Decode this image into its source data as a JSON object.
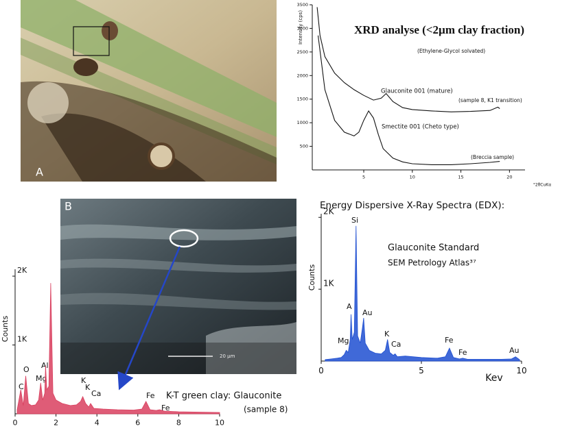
{
  "panels": {
    "a_label": "A",
    "b_label": "B",
    "scale_bar": "20 µm",
    "caption": "K-T green clay: Glauconite",
    "caption_sample": "(sample 8)"
  },
  "chart_data": [
    {
      "type": "line",
      "title": "XRD analyse (<2µm clay fraction)",
      "y_label": "Intensity (cps)",
      "x_label": "°2θCuKα",
      "annotations": [
        "(Ethylene-Glycol solvated)",
        "Glauconite 001 (mature)",
        "(sample 8, K1 transition)",
        "Smectite 001 (Cheto type)",
        "(Breccia sample)"
      ],
      "xlim": [
        -0.3,
        21.6
      ],
      "ylim": [
        0,
        3500
      ],
      "xticks": [
        5,
        10,
        15,
        20
      ],
      "yticks": [
        500,
        1000,
        1500,
        2000,
        2500,
        3000,
        3500
      ],
      "series": [
        {
          "name": "Glauconite",
          "color": "#111111",
          "x": [
            0.2,
            0.5,
            1,
            2,
            3,
            4,
            5,
            6,
            6.8,
            7.3,
            8,
            9,
            10,
            12,
            14,
            16,
            18,
            18.8,
            19
          ],
          "values": [
            3450,
            2850,
            2400,
            2050,
            1850,
            1700,
            1580,
            1480,
            1520,
            1620,
            1450,
            1320,
            1280,
            1250,
            1230,
            1240,
            1260,
            1330,
            1300
          ]
        },
        {
          "name": "Smectite",
          "color": "#111111",
          "x": [
            0.3,
            1,
            2,
            3,
            4,
            4.5,
            5,
            5.5,
            6,
            6.5,
            7,
            8,
            9,
            10,
            12,
            14,
            16,
            18,
            19
          ],
          "values": [
            2850,
            1700,
            1050,
            800,
            720,
            800,
            1050,
            1250,
            1100,
            750,
            450,
            250,
            170,
            130,
            110,
            110,
            130,
            160,
            180
          ]
        }
      ]
    },
    {
      "type": "area",
      "title": "Energy Dispersive X-Ray Spectra (EDX):",
      "y_label": "Counts",
      "x_label": "Kev",
      "annotations": [
        "Glauconite Standard",
        "SEM Petrology Atlas³⁷"
      ],
      "peak_labels": [
        "Si",
        "A",
        "Au",
        "Mg",
        "K",
        "Ca",
        "Fe",
        "Fe",
        "Au"
      ],
      "xlim": [
        0,
        10
      ],
      "ylim": [
        0,
        2050
      ],
      "xticks": [
        0,
        5,
        10
      ],
      "yticks": [
        {
          "value": 1000,
          "label": "1K"
        },
        {
          "value": 2000,
          "label": "2K"
        }
      ],
      "series": [
        {
          "name": "Glauconite Standard",
          "color": "#1f4fd1",
          "x": [
            0.2,
            0.5,
            0.8,
            1.0,
            1.15,
            1.25,
            1.35,
            1.45,
            1.49,
            1.55,
            1.65,
            1.74,
            1.82,
            1.95,
            2.05,
            2.12,
            2.2,
            2.4,
            2.7,
            3.0,
            3.2,
            3.31,
            3.42,
            3.6,
            3.69,
            3.8,
            4.2,
            5.0,
            5.8,
            6.2,
            6.4,
            6.6,
            6.9,
            7.06,
            7.3,
            8.0,
            9.0,
            9.5,
            9.7,
            9.9
          ],
          "values": [
            20,
            30,
            40,
            50,
            90,
            150,
            120,
            300,
            650,
            300,
            400,
            1880,
            350,
            250,
            450,
            600,
            250,
            150,
            110,
            100,
            150,
            300,
            120,
            80,
            100,
            60,
            70,
            50,
            40,
            60,
            180,
            50,
            30,
            40,
            25,
            25,
            25,
            30,
            60,
            20
          ]
        }
      ]
    },
    {
      "type": "area",
      "y_label": "Counts",
      "peak_labels": [
        "C",
        "O",
        "Mg",
        "Al",
        "K",
        "K",
        "Ca",
        "Fe",
        "Fe"
      ],
      "xlim": [
        0,
        10
      ],
      "ylim": [
        0,
        2100
      ],
      "xticks": [
        0,
        2,
        4,
        6,
        8,
        10
      ],
      "yticks": [
        {
          "value": 1000,
          "label": "1K"
        },
        {
          "value": 2000,
          "label": "2K"
        }
      ],
      "series": [
        {
          "name": "K-T green clay",
          "color": "#d9405f",
          "x": [
            0.1,
            0.28,
            0.4,
            0.52,
            0.65,
            0.8,
            1.0,
            1.15,
            1.25,
            1.35,
            1.45,
            1.49,
            1.55,
            1.65,
            1.74,
            1.85,
            2.0,
            2.3,
            2.7,
            3.0,
            3.2,
            3.31,
            3.45,
            3.6,
            3.69,
            3.85,
            4.3,
            5.0,
            5.8,
            6.2,
            6.4,
            6.6,
            6.9,
            7.06,
            7.3,
            8.0,
            9.0,
            10.0
          ],
          "values": [
            60,
            350,
            120,
            550,
            150,
            120,
            130,
            200,
            450,
            200,
            300,
            700,
            350,
            400,
            1900,
            300,
            200,
            150,
            120,
            130,
            180,
            250,
            150,
            100,
            150,
            80,
            70,
            60,
            55,
            70,
            180,
            60,
            50,
            60,
            40,
            30,
            25,
            20
          ]
        }
      ]
    }
  ]
}
